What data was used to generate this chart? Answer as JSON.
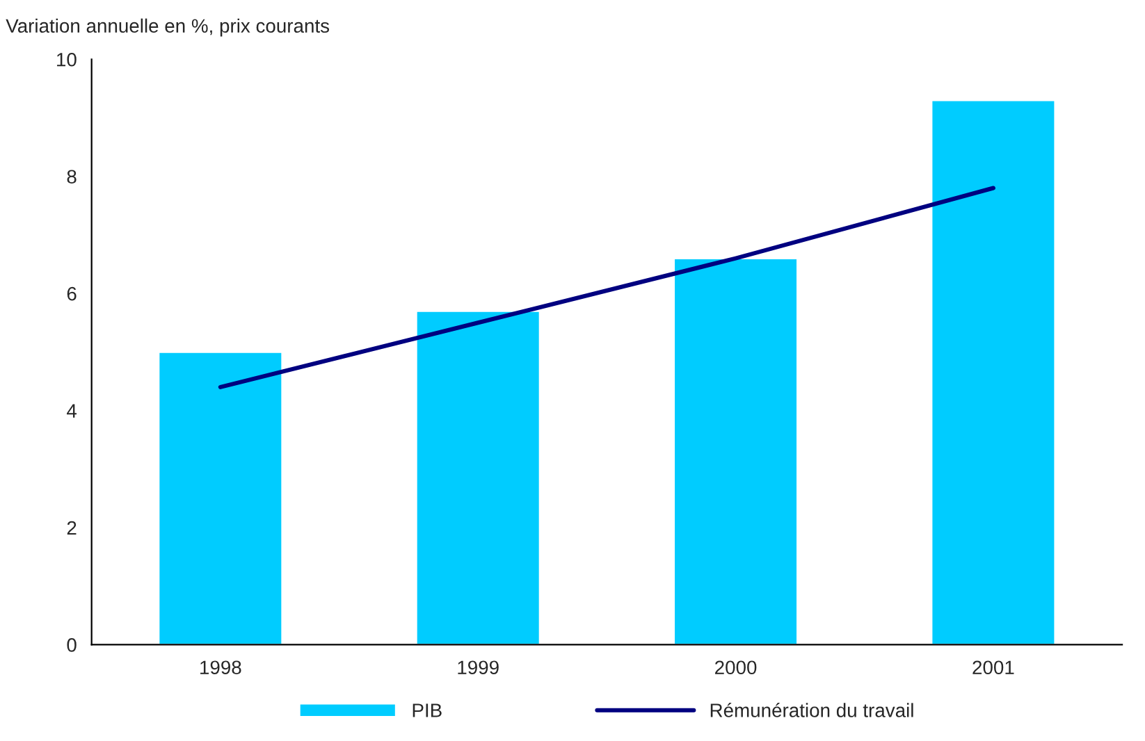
{
  "chart_data": {
    "type": "bar",
    "ylabel": "Variation annuelle en %, prix courants",
    "categories": [
      "1998",
      "1999",
      "2000",
      "2001"
    ],
    "series": [
      {
        "name": "PIB",
        "color": "#00ccff",
        "values": [
          5.0,
          5.7,
          6.6,
          9.3
        ]
      },
      {
        "name": "Rémunération du travail",
        "type": "line",
        "color": "#000080",
        "values": [
          4.4,
          5.5,
          6.6,
          7.8
        ]
      }
    ],
    "ylim": [
      0,
      10
    ],
    "yticks": [
      0,
      2,
      4,
      6,
      8,
      10
    ],
    "grid": false,
    "legend": "bottom"
  }
}
